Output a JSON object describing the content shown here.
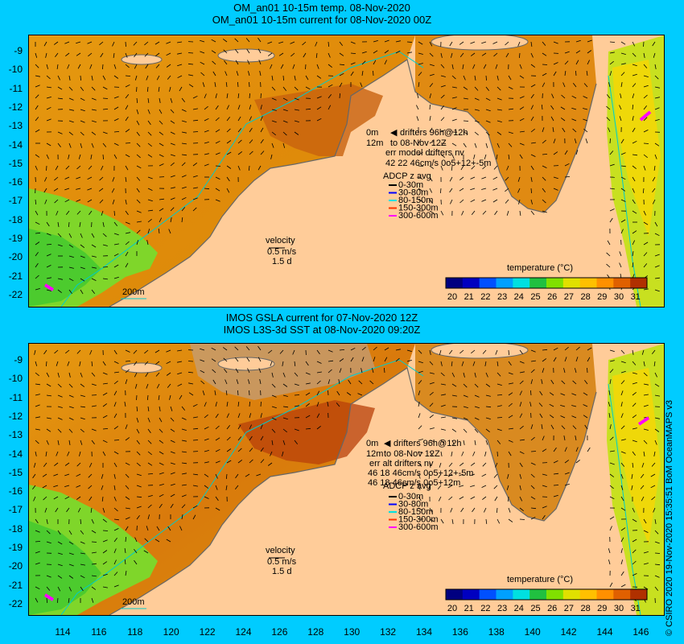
{
  "top_panel": {
    "title_line1": "OM_an01 10-15m temp. 08-Nov-2020",
    "title_line2": "OM_an01 10-15m current for 08-Nov-2020 00Z",
    "drifters_line1": "0m",
    "drifters_line2": "drifters 96h@12h",
    "drifters_line3": "12m",
    "drifters_line4": "to 08-Nov 12Z",
    "err_line": "err model drifters nv",
    "err_values": "42 22 46cm/s 0o5+12+-5m",
    "adcp_title": "ADCP z avg",
    "adcp_items": [
      "0-30m",
      "30-80m",
      "80-150m",
      "150-300m",
      "300-600m"
    ],
    "velocity_title": "velocity",
    "velocity_speed": "0.5 m/s",
    "velocity_time": "1.5 d",
    "isobath_label": "200m",
    "colorbar_title": "temperature (°C)"
  },
  "bottom_panel": {
    "title_line1": "IMOS GSLA current for 07-Nov-2020 12Z",
    "title_line2": "IMOS L3S-3d SST at 08-Nov-2020 09:20Z",
    "drifters_line1": "0m",
    "drifters_line2": "drifters 96h@12h",
    "drifters_line3": "12m",
    "drifters_line4": "to 08-Nov 12Z",
    "err_line": "err alt drifters nv",
    "err_values_1": "46 18 46cm/s 0o5+12+-5m",
    "err_values_2": "46 18 46cm/s 0o5+12m",
    "adcp_title": "ADCP z avg",
    "adcp_items": [
      "0-30m",
      "30-80m",
      "80-150m",
      "150-300m",
      "300-600m"
    ],
    "velocity_title": "velocity",
    "velocity_speed": "0.5 m/s",
    "velocity_time": "1.5 d",
    "isobath_label": "200m",
    "colorbar_title": "temperature (°C)"
  },
  "colorbar_ticks": [
    "20",
    "21",
    "22",
    "23",
    "24",
    "25",
    "26",
    "27",
    "28",
    "29",
    "30",
    "31"
  ],
  "adcp_colors": [
    "#000000",
    "#0000ff",
    "#00e0e0",
    "#ff3300",
    "#ff00ff"
  ],
  "y_ticks": [
    "-9",
    "-10",
    "-11",
    "-12",
    "-13",
    "-14",
    "-15",
    "-16",
    "-17",
    "-18",
    "-19",
    "-20",
    "-21",
    "-22"
  ],
  "x_ticks": [
    "114",
    "116",
    "118",
    "120",
    "122",
    "124",
    "126",
    "128",
    "130",
    "132",
    "134",
    "136",
    "138",
    "140",
    "142",
    "144",
    "146"
  ],
  "credit": "© CSIRO 2020  19-Nov-2020 15:35:51 BoM OceanMAPS v3"
}
